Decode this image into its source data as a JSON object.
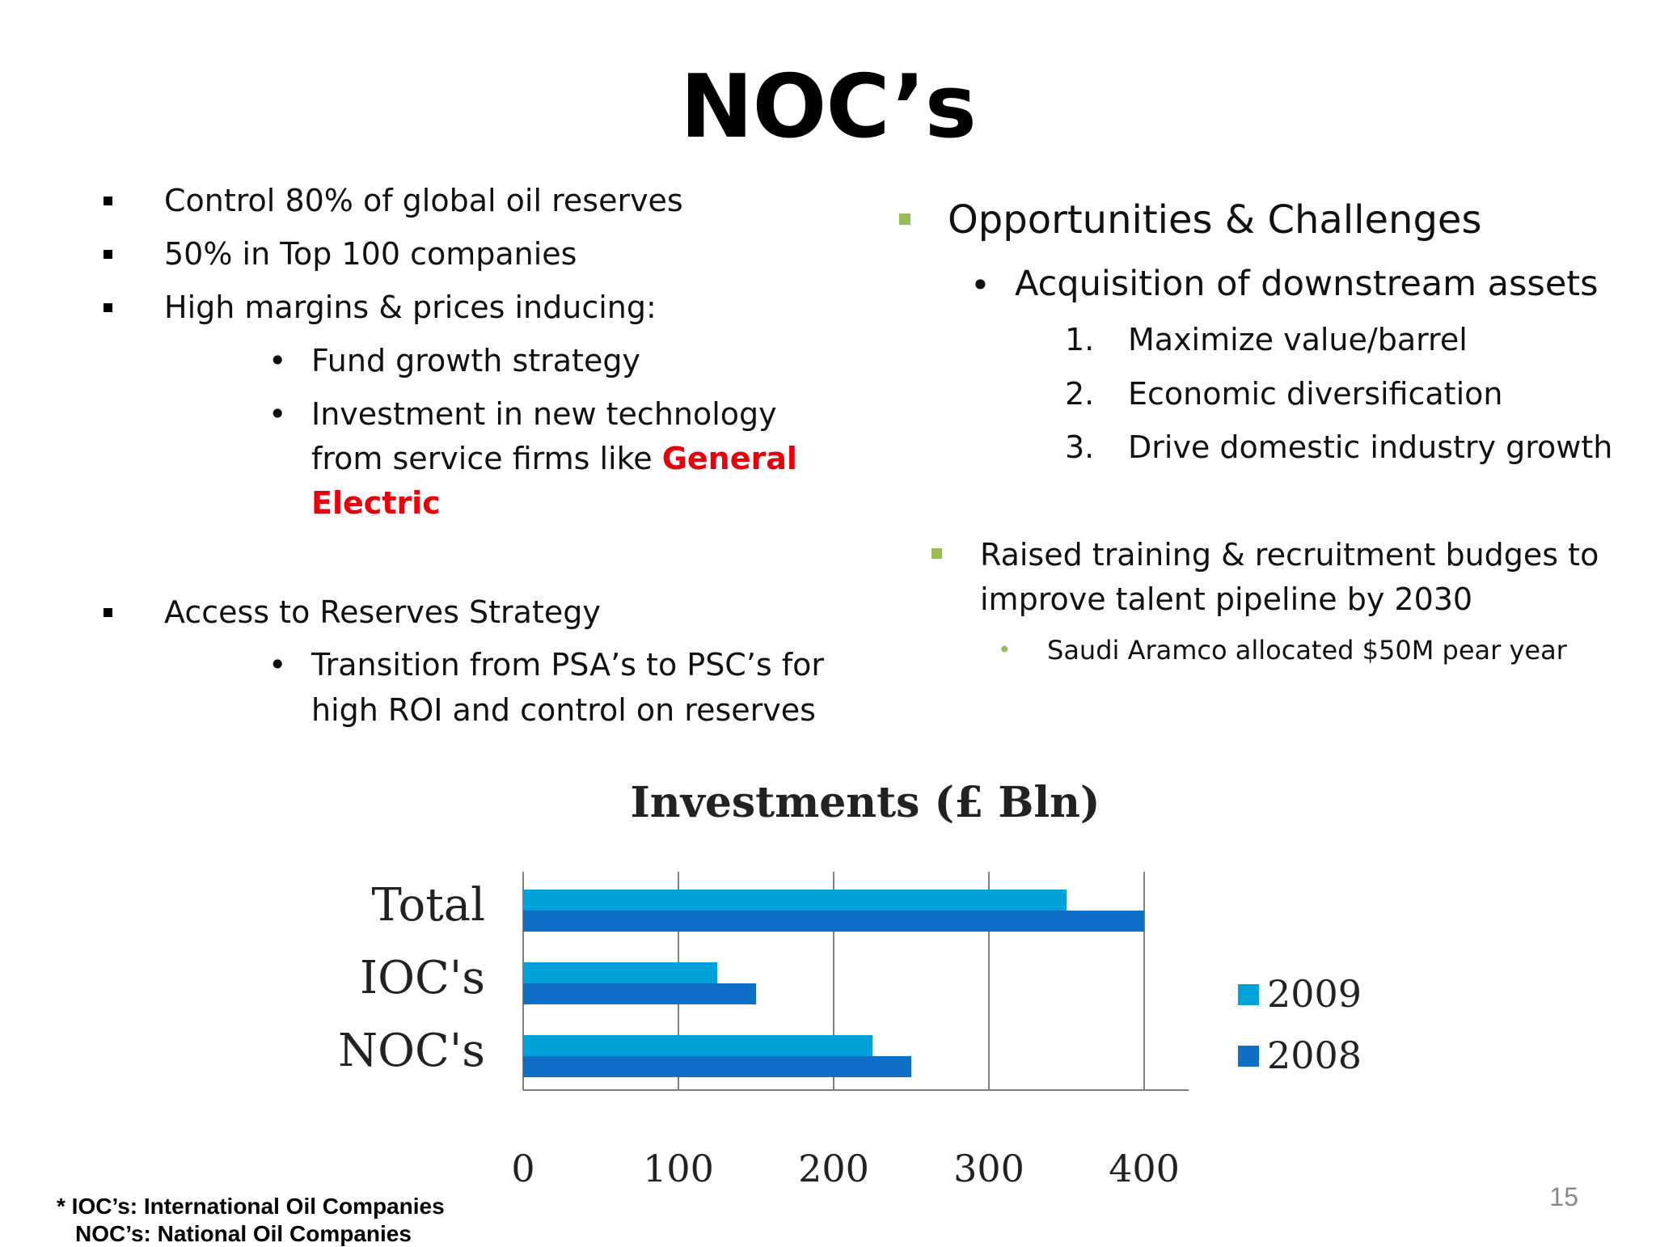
{
  "slide": {
    "title": "NOC’s",
    "page_number": "15"
  },
  "left": {
    "bullets": [
      "Control 80% of global oil reserves",
      "50% in Top 100 companies",
      "High margins & prices inducing:"
    ],
    "sub_bullets": [
      "Fund growth strategy",
      "Investment in new technology"
    ],
    "investment_line2_prefix": "from service firms like ",
    "highlight_line1": "General",
    "highlight_line2": "Electric",
    "access_bullet": "Access to Reserves Strategy",
    "transition_line1": "Transition from PSA’s to PSC’s for",
    "transition_line2": "high ROI and control on reserves"
  },
  "right": {
    "heading": "Opportunities & Challenges",
    "sub_heading": "Acquisition of downstream assets",
    "numbered": [
      {
        "num": "1.",
        "text": "Maximize value/barrel"
      },
      {
        "num": "2.",
        "text": "Economic diversification"
      },
      {
        "num": "3.",
        "text": "Drive domestic industry growth"
      }
    ],
    "training_line1": "Raised training & recruitment budges to",
    "training_line2": "improve talent pipeline by 2030",
    "aramco": "Saudi Aramco allocated $50M pear year"
  },
  "chart_data": {
    "type": "bar",
    "orientation": "horizontal",
    "title": "Investments (£ Bln)",
    "categories": [
      "Total",
      "IOC's",
      "NOC's"
    ],
    "series": [
      {
        "name": "2009",
        "color": "#00a2da",
        "values": [
          350,
          125,
          225
        ]
      },
      {
        "name": "2008",
        "color": "#0f6fc6",
        "values": [
          400,
          150,
          250
        ]
      }
    ],
    "xlim": [
      0,
      400
    ],
    "xticks": [
      "0",
      "100",
      "200",
      "300",
      "400"
    ],
    "grid": true,
    "legend": "right"
  },
  "footnote": {
    "line1": "*  IOC’s: International Oil Companies",
    "line2": "NOC’s: National Oil Companies"
  }
}
